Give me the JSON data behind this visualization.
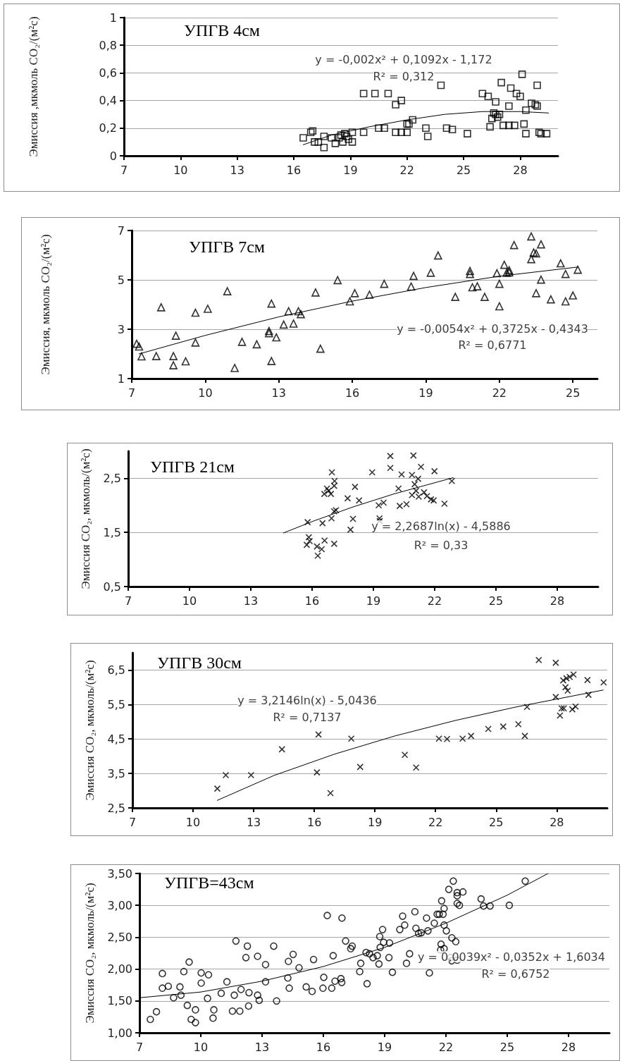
{
  "chart_data": [
    {
      "type": "scatter",
      "title": "УПГВ 4см",
      "ylabel": "Эмиссия ,мкмоль CO₂/(м²с)",
      "marker": "square",
      "grid": "y",
      "annotations": [
        "y = -0,002x² + 0,1092x - 1,172",
        "R² = 0,312"
      ],
      "xlim": [
        7,
        30
      ],
      "xticks": [
        7,
        10,
        13,
        16,
        19,
        22,
        25,
        28
      ],
      "ylim": [
        0,
        1
      ],
      "yticks": [
        0,
        {
          "value": 0.2,
          "label": "0,2"
        },
        {
          "value": 0.4,
          "label": "0,4"
        },
        {
          "value": 0.6,
          "label": "0,6"
        },
        {
          "value": 0.8,
          "label": "0,8"
        },
        1
      ],
      "series": [
        {
          "color": "#000000",
          "x": [
            16.5,
            16.9,
            17.0,
            17.1,
            17.3,
            17.6,
            17.6,
            18.0,
            18.2,
            18.4,
            18.5,
            18.6,
            18.7,
            18.8,
            18.9,
            19.1,
            19.1,
            19.7,
            19.7,
            20.3,
            20.5,
            20.8,
            21.0,
            21.4,
            21.4,
            21.7,
            21.7,
            22.0,
            22.0,
            22.1,
            22.3,
            23.0,
            23.1,
            23.8,
            24.1,
            24.4,
            25.2,
            26.0,
            26.3,
            26.4,
            26.5,
            26.6,
            26.7,
            26.7,
            26.8,
            26.9,
            27.0,
            27.1,
            27.4,
            27.5,
            27.4,
            27.7,
            27.8,
            28.0,
            28.1,
            28.2,
            28.3,
            28.3,
            28.6,
            28.8,
            28.9,
            28.9,
            29.0,
            29.1,
            29.4
          ],
          "values": [
            0.13,
            0.17,
            0.18,
            0.1,
            0.1,
            0.06,
            0.14,
            0.13,
            0.09,
            0.13,
            0.15,
            0.1,
            0.16,
            0.14,
            0.12,
            0.17,
            0.1,
            0.17,
            0.45,
            0.45,
            0.2,
            0.2,
            0.45,
            0.17,
            0.37,
            0.4,
            0.17,
            0.23,
            0.17,
            0.23,
            0.26,
            0.2,
            0.14,
            0.51,
            0.2,
            0.19,
            0.16,
            0.45,
            0.43,
            0.21,
            0.27,
            0.31,
            0.39,
            0.3,
            0.28,
            0.3,
            0.53,
            0.22,
            0.36,
            0.49,
            0.22,
            0.22,
            0.45,
            0.43,
            0.59,
            0.23,
            0.16,
            0.33,
            0.38,
            0.37,
            0.51,
            0.36,
            0.17,
            0.16,
            0.16
          ]
        },
        {
          "type": "line",
          "marker": "none",
          "color": "#000000",
          "x": [
            16.5,
            18,
            20,
            22,
            24,
            26,
            28,
            29.5
          ],
          "values": [
            0.08,
            0.15,
            0.21,
            0.26,
            0.3,
            0.32,
            0.32,
            0.31
          ]
        }
      ]
    },
    {
      "type": "scatter",
      "title": "УПГВ 7см",
      "ylabel": "Эмиссия, мкмоль CO₂/(м²с)",
      "marker": "triangle",
      "grid": "y",
      "annotations": [
        "y = -0,0054x² + 0,3725x - 0,4343",
        "R² = 0,6771"
      ],
      "xlim": [
        7,
        26
      ],
      "xticks": [
        7,
        10,
        13,
        16,
        19,
        22,
        25
      ],
      "ylim": [
        1,
        7
      ],
      "yticks": [
        1,
        3,
        5,
        7
      ],
      "series": [
        {
          "color": "#000000",
          "x": [
            7.2,
            7.3,
            7.4,
            8.0,
            8.2,
            8.7,
            8.7,
            8.8,
            9.2,
            9.6,
            9.6,
            10.1,
            10.9,
            11.2,
            11.5,
            12.1,
            12.6,
            12.6,
            12.7,
            12.7,
            12.9,
            13.2,
            13.4,
            13.6,
            13.8,
            13.9,
            14.5,
            14.7,
            15.4,
            15.9,
            16.1,
            16.7,
            17.3,
            18.5,
            18.4,
            19.2,
            19.5,
            20.2,
            20.8,
            20.8,
            20.9,
            21.1,
            21.4,
            21.9,
            22.0,
            22.0,
            22.2,
            22.3,
            22.4,
            22.4,
            22.6,
            23.3,
            23.3,
            23.4,
            23.5,
            23.5,
            23.7,
            23.7,
            24.1,
            24.5,
            24.7,
            24.7,
            25.0,
            25.2
          ],
          "values": [
            2.41,
            2.3,
            1.9,
            1.91,
            3.89,
            1.54,
            1.91,
            2.74,
            1.7,
            3.67,
            2.46,
            3.83,
            4.54,
            1.43,
            2.49,
            2.39,
            2.93,
            2.84,
            1.71,
            4.04,
            2.67,
            3.19,
            3.73,
            3.23,
            3.73,
            3.61,
            4.49,
            2.21,
            4.99,
            4.13,
            4.46,
            4.4,
            4.84,
            5.16,
            4.73,
            5.29,
            5.99,
            4.31,
            5.36,
            5.24,
            4.7,
            4.74,
            4.31,
            5.27,
            4.84,
            3.93,
            5.61,
            5.29,
            5.39,
            5.3,
            6.41,
            5.84,
            6.76,
            6.11,
            6.07,
            4.46,
            6.44,
            5.01,
            4.21,
            5.67,
            4.13,
            5.24,
            4.37,
            5.41
          ]
        },
        {
          "type": "line",
          "marker": "none",
          "color": "#000000",
          "x": [
            7.3,
            10,
            13,
            16,
            19,
            22,
            25.2
          ],
          "values": [
            2.0,
            2.75,
            3.5,
            4.14,
            4.69,
            5.15,
            5.52
          ]
        }
      ]
    },
    {
      "type": "scatter",
      "title": "УПГВ 21см",
      "ylabel": "Эмиссия CO₂, мкмоль/(м²с)",
      "marker": "cross",
      "grid": "y",
      "annotations": [
        "y = 2,2687ln(x) - 4,5886",
        "R² = 0,33"
      ],
      "xlim": [
        7,
        30
      ],
      "xticks": [
        7,
        10,
        13,
        16,
        19,
        22,
        25,
        28
      ],
      "ylim": [
        0.5,
        3
      ],
      "yticks": [
        {
          "value": 0.5,
          "label": "0,5"
        },
        {
          "value": 1.5,
          "label": "1,5"
        },
        {
          "value": 2.5,
          "label": "2,5"
        }
      ],
      "series": [
        {
          "color": "#000000",
          "x": [
            15.78,
            15.84,
            15.88,
            15.74,
            16.24,
            16.28,
            16.47,
            16.51,
            16.61,
            16.6,
            16.73,
            16.81,
            16.92,
            16.95,
            16.97,
            17.08,
            17.08,
            17.17,
            17.08,
            17.1,
            17.74,
            17.88,
            18.0,
            18.1,
            18.3,
            18.94,
            19.26,
            19.3,
            19.31,
            19.5,
            19.83,
            19.83,
            20.23,
            20.29,
            20.38,
            20.62,
            20.89,
            20.96,
            20.89,
            21.02,
            21.09,
            21.19,
            21.22,
            21.33,
            21.48,
            21.62,
            21.82,
            21.95,
            21.99,
            22.48,
            22.84
          ],
          "values": [
            1.69,
            1.41,
            1.34,
            1.27,
            1.24,
            1.07,
            1.19,
            1.67,
            1.35,
            2.21,
            2.31,
            2.27,
            2.21,
            1.76,
            2.61,
            1.29,
            1.89,
            1.91,
            2.36,
            2.45,
            2.13,
            1.55,
            1.75,
            2.34,
            2.09,
            2.61,
            2.0,
            1.76,
            1.71,
            2.05,
            2.91,
            2.69,
            2.31,
            1.99,
            2.57,
            2.02,
            2.56,
            2.92,
            2.19,
            2.39,
            2.27,
            2.49,
            2.16,
            2.71,
            2.24,
            2.17,
            2.11,
            2.09,
            2.63,
            2.03,
            2.45
          ]
        },
        {
          "type": "line",
          "marker": "none",
          "color": "#000000",
          "x": [
            14.6,
            16,
            18,
            20,
            22.9
          ],
          "values": [
            1.49,
            1.7,
            1.97,
            2.21,
            2.51
          ]
        }
      ]
    },
    {
      "type": "scatter",
      "title": "УПГВ 30см",
      "ylabel": "Эмиссия CO₂, мкмоль/(м²с)",
      "marker": "cross",
      "grid": "y",
      "annotations": [
        "y = 3,2146ln(x) - 5,0436",
        "R² = 0,7137"
      ],
      "xlim": [
        7,
        30.5
      ],
      "xticks": [
        7,
        10,
        13,
        16,
        19,
        22,
        25,
        28
      ],
      "ylim": [
        2.5,
        7
      ],
      "yticks": [
        {
          "value": 2.5,
          "label": "2,5"
        },
        {
          "value": 3.5,
          "label": "3,5"
        },
        {
          "value": 4.5,
          "label": "4,5"
        },
        {
          "value": 5.5,
          "label": "5,5"
        },
        {
          "value": 6.5,
          "label": "6,5"
        }
      ],
      "series": [
        {
          "color": "#000000",
          "x": [
            11.2,
            11.62,
            12.87,
            14.4,
            16.21,
            16.13,
            16.8,
            17.83,
            18.27,
            20.48,
            21.04,
            22.17,
            22.57,
            23.34,
            23.76,
            24.61,
            25.35,
            26.1,
            26.42,
            26.53,
            27.11,
            27.95,
            27.95,
            28.16,
            28.24,
            28.35,
            28.32,
            28.43,
            28.48,
            28.54,
            28.64,
            28.77,
            28.83,
            28.93,
            29.52,
            29.57,
            30.32
          ],
          "values": [
            3.06,
            3.45,
            3.45,
            4.2,
            4.63,
            3.53,
            2.93,
            4.51,
            3.69,
            4.04,
            3.67,
            4.51,
            4.5,
            4.51,
            4.59,
            4.79,
            4.86,
            4.93,
            4.59,
            5.43,
            6.79,
            6.71,
            5.72,
            5.18,
            5.39,
            5.39,
            6.2,
            6.0,
            6.26,
            5.9,
            6.3,
            5.36,
            6.37,
            5.44,
            6.21,
            5.78,
            6.14
          ]
        },
        {
          "type": "line",
          "marker": "none",
          "color": "#000000",
          "x": [
            11.2,
            14,
            17,
            20,
            23,
            26,
            30.3
          ],
          "values": [
            2.72,
            3.44,
            4.06,
            4.59,
            5.04,
            5.43,
            5.92
          ]
        }
      ]
    },
    {
      "type": "scatter",
      "title": "УПГВ=43см",
      "ylabel": "Эмиссия CO₂, мкмоль/(м²с)",
      "marker": "circle",
      "grid": "y",
      "annotations": [
        "y = 0,0039x² - 0,0352x + 1,6034",
        "R² = 0,6752"
      ],
      "xlim": [
        7,
        30
      ],
      "xticks": [
        7,
        10,
        13,
        16,
        19,
        22,
        25,
        28
      ],
      "ylim": [
        1,
        3.5
      ],
      "yticks": [
        {
          "value": 1,
          "label": "1,00"
        },
        {
          "value": 1.5,
          "label": "1,50"
        },
        {
          "value": 2,
          "label": "2,00"
        },
        {
          "value": 2.5,
          "label": "2,50"
        },
        {
          "value": 3,
          "label": "3,00"
        },
        {
          "value": 3.5,
          "label": "3,50"
        }
      ],
      "series": [
        {
          "color": "#000000",
          "x": [
            7.53,
            7.83,
            8.12,
            8.12,
            8.41,
            8.67,
            8.98,
            9.03,
            9.17,
            9.34,
            9.43,
            9.53,
            9.74,
            9.74,
            10.02,
            10.02,
            10.33,
            10.38,
            10.6,
            10.64,
            11.0,
            11.28,
            11.55,
            11.64,
            11.72,
            11.91,
            11.97,
            12.21,
            12.28,
            12.34,
            12.36,
            12.78,
            12.78,
            12.86,
            13.17,
            13.17,
            13.57,
            13.71,
            14.26,
            14.29,
            14.33,
            14.52,
            14.81,
            15.16,
            15.45,
            15.52,
            16.02,
            15.98,
            16.19,
            16.41,
            16.48,
            16.57,
            16.86,
            16.9,
            16.91,
            17.09,
            17.34,
            17.41,
            17.78,
            17.83,
            18.09,
            18.14,
            18.26,
            18.43,
            18.64,
            18.72,
            18.76,
            18.78,
            18.9,
            18.95,
            19.21,
            19.24,
            19.38,
            19.74,
            19.88,
            19.98,
            20.07,
            20.22,
            20.48,
            20.53,
            20.66,
            20.79,
            21.05,
            21.12,
            21.19,
            21.43,
            21.57,
            21.67,
            21.74,
            21.76,
            21.79,
            21.86,
            21.91,
            21.91,
            21.91,
            22.02,
            22.14,
            22.22,
            22.29,
            22.28,
            22.36,
            22.48,
            22.55,
            22.55,
            22.55,
            22.55,
            22.66,
            22.83,
            23.72,
            23.84,
            24.16,
            25.1,
            25.88
          ],
          "values": [
            1.21,
            1.33,
            1.93,
            1.7,
            1.73,
            1.55,
            1.72,
            1.59,
            1.96,
            1.43,
            2.11,
            1.21,
            1.36,
            1.16,
            1.94,
            1.78,
            1.54,
            1.91,
            1.23,
            1.36,
            1.62,
            1.8,
            1.34,
            1.59,
            2.44,
            1.34,
            1.68,
            2.18,
            2.36,
            1.42,
            1.63,
            2.2,
            1.59,
            1.51,
            2.07,
            1.8,
            2.36,
            1.5,
            1.86,
            2.12,
            1.7,
            2.23,
            2.02,
            1.72,
            1.65,
            2.15,
            1.87,
            1.7,
            2.84,
            1.7,
            2.21,
            1.81,
            1.85,
            1.79,
            2.8,
            2.44,
            2.32,
            2.36,
            1.96,
            2.09,
            2.26,
            1.77,
            2.24,
            2.18,
            2.21,
            2.08,
            2.51,
            2.34,
            2.62,
            2.42,
            2.18,
            2.41,
            1.95,
            2.62,
            2.83,
            2.69,
            2.09,
            2.24,
            2.9,
            2.64,
            2.56,
            2.57,
            2.8,
            2.6,
            1.94,
            2.72,
            2.86,
            2.86,
            2.3,
            2.39,
            3.07,
            2.86,
            2.95,
            2.69,
            2.32,
            2.6,
            3.25,
            2.18,
            2.49,
            2.13,
            3.38,
            2.43,
            3.2,
            2.14,
            3.03,
            3.15,
            3.0,
            3.21,
            3.1,
            2.99,
            2.99,
            3.0,
            3.38
          ]
        },
        {
          "type": "line",
          "marker": "none",
          "color": "#000000",
          "x": [
            7,
            10,
            13,
            16,
            19,
            22,
            25,
            27
          ],
          "values": [
            1.55,
            1.64,
            1.81,
            2.04,
            2.34,
            2.72,
            3.16,
            3.5
          ]
        }
      ]
    }
  ]
}
